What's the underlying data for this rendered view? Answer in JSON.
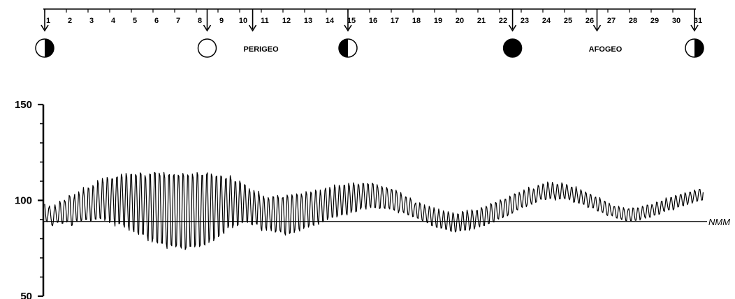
{
  "chart_data": {
    "type": "line",
    "title": "",
    "xlabel": "",
    "ylabel": "",
    "ylim": [
      50,
      150
    ],
    "yticks": [
      "150",
      "100",
      "50"
    ],
    "xlim": [
      1,
      31.4
    ],
    "day_ticks": [
      "1",
      "2",
      "3",
      "4",
      "5",
      "6",
      "7",
      "8",
      "9",
      "10",
      "11",
      "12",
      "13",
      "14",
      "15",
      "16",
      "17",
      "18",
      "19",
      "20",
      "21",
      "22",
      "23",
      "24",
      "25",
      "26",
      "27",
      "28",
      "29",
      "30",
      "31"
    ],
    "reference_line": {
      "label": "NMM",
      "value": 89
    },
    "events": [
      {
        "type": "moon",
        "phase": "first-quarter",
        "day": 1.0
      },
      {
        "type": "moon",
        "phase": "full",
        "day": 8.5
      },
      {
        "type": "label",
        "label": "PERIGEO",
        "day": 10.6
      },
      {
        "type": "moon",
        "phase": "last-quarter",
        "day": 15.0
      },
      {
        "type": "moon",
        "phase": "new",
        "day": 22.6
      },
      {
        "type": "label",
        "label": "AFOGEO",
        "day": 26.5
      },
      {
        "type": "moon",
        "phase": "first-quarter",
        "day": 31.0
      }
    ],
    "series": [
      {
        "period_hours": 12.42,
        "points_per_day": 24,
        "x_start": 1.0,
        "x_end": 31.4,
        "values": [
          98.1,
          93.0,
          89.3,
          88.8,
          91.8,
          95.6,
          97.1,
          94.8,
          90.7,
          87.2,
          86.8,
          89.1,
          95.0,
          97.7,
          95.2,
          90.9,
          88.5,
          88.7,
          93.3,
          99.6,
          98.3,
          92.0,
          88.0,
          88.1,
          95.4,
          100.1,
          99.2,
          94.8,
          88.7,
          89.3,
          95.1,
          102.6,
          101.9,
          93.3,
          86.9,
          87.1,
          94.0,
          100.6,
          103.2,
          96.4,
          89.9,
          88.9,
          97.0,
          104.5,
          102.5,
          93.7,
          89.2,
          89.8,
          100.0,
          106.8,
          102.7,
          96.3,
          89.9,
          90.1,
          96.3,
          106.5,
          106.0,
          98.1,
          89.2,
          89.6,
          98.7,
          107.8,
          106.7,
          96.3,
          90.3,
          90.1,
          99.4,
          110.4,
          108.6,
          99.1,
          90.8,
          90.4,
          101.9,
          111.5,
          109.4,
          99.2,
          89.5,
          90.8,
          101.8,
          112.0,
          110.9,
          99.0,
          88.4,
          89.7,
          102.1,
          111.2,
          111.2,
          100.8,
          90.3,
          86.6,
          101.6,
          111.9,
          112.2,
          100.6,
          87.8,
          88.1,
          103.4,
          113.7,
          112.1,
          100.2,
          87.4,
          86.0,
          102.1,
          114.1,
          112.2,
          97.8,
          86.8,
          84.4,
          101.1,
          113.5,
          113.6,
          98.5,
          85.1,
          83.6,
          100.4,
          113.5,
          112.8,
          100.2,
          83.4,
          82.2,
          99.1,
          114.4,
          113.7,
          98.4,
          82.4,
          82.3,
          98.4,
          113.0,
          111.3,
          97.3,
          82.0,
          78.9,
          96.8,
          113.8,
          113.4,
          95.6,
          78.3,
          80.1,
          98.8,
          114.6,
          114.3,
          93.6,
          78.5,
          77.7,
          98.2,
          114.2,
          112.8,
          95.1,
          77.7,
          77.6,
          97.0,
          114.6,
          111.8,
          93.9,
          77.6,
          74.9,
          96.3,
          113.1,
          113.5,
          93.6,
          76.9,
          76.3,
          96.2,
          112.8,
          113.5,
          93.5,
          75.7,
          76.7,
          97.5,
          113.2,
          112.6,
          92.2,
          76.3,
          75.1,
          96.6,
          114.1,
          112.5,
          94.6,
          74.3,
          75.4,
          96.2,
          113.3,
          112.6,
          93.9,
          76.0,
          76.0,
          96.8,
          113.8,
          111.9,
          93.9,
          75.7,
          77.0,
          96.4,
          114.5,
          113.1,
          94.7,
          75.9,
          76.6,
          95.6,
          113.1,
          113.1,
          93.3,
          77.2,
          76.7,
          97.2,
          113.3,
          114.4,
          96.4,
          78.0,
          80.3,
          96.2,
          113.8,
          112.3,
          97.3,
          78.9,
          80.5,
          98.5,
          112.3,
          112.7,
          96.6,
          81.1,
          81.8,
          99.4,
          112.8,
          112.3,
          97.6,
          83.7,
          82.7,
          99.8,
          111.1,
          111.5,
          98.6,
          85.7,
          86.8,
          100.3,
          112.9,
          110.7,
          99.2,
          85.7,
          87.4,
          100.5,
          109.8,
          109.6,
          99.3,
          86.8,
          87.3,
          100.8,
          110.1,
          108.7,
          98.3,
          88.3,
          89.0,
          99.7,
          108.2,
          107.9,
          98.8,
          89.3,
          88.5,
          99.7,
          106.1,
          104.3,
          96.3,
          87.6,
          87.2,
          97.2,
          105.2,
          102.9,
          95.2,
          88.2,
          87.5,
          96.9,
          104.8,
          101.5,
          95.3,
          85.4,
          84.2,
          94.0,
          102.3,
          100.6,
          92.9,
          86.0,
          84.4,
          94.6,
          101.5,
          100.4,
          92.6,
          86.4,
          84.1,
          94.5,
          102.0,
          101.8,
          92.8,
          83.4,
          84.0,
          93.5,
          102.6,
          101.1,
          92.1,
          84.4,
          83.5,
          94.4,
          101.2,
          101.5,
          92.7,
          83.0,
          81.9,
          94.5,
          102.8,
          101.7,
          92.8,
          82.7,
          83.2,
          93.9,
          103.0,
          101.8,
          93.2,
          83.2,
          84.8,
          94.2,
          103.4,
          102.6,
          94.2,
          85.2,
          84.0,
          95.6,
          103.4,
          101.9,
          95.5,
          85.3,
          86.7,
          95.5,
          104.6,
          103.0,
          94.7,
          86.0,
          87.2,
          96.8,
          104.4,
          103.5,
          95.6,
          87.3,
          86.9,
          97.9,
          105.4,
          104.4,
          96.9,
          89.1,
          87.4,
          97.4,
          105.4,
          102.6,
          97.0,
          88.8,
          89.0,
          98.3,
          105.3,
          106.4,
          99.0,
          89.9,
          91.2,
          98.4,
          106.8,
          104.8,
          98.1,
          91.2,
          91.2,
          99.6,
          108.1,
          106.6,
          98.0,
          91.3,
          92.4,
          101.1,
          107.9,
          106.6,
          100.0,
          92.4,
          92.8,
          100.1,
          107.9,
          107.9,
          100.4,
          93.3,
          92.4,
          100.6,
          108.9,
          107.1,
          101.4,
          93.6,
          95.0,
          102.6,
          109.2,
          107.7,
          101.5,
          94.0,
          94.4,
          102.4,
          108.5,
          107.7,
          102.0,
          95.4,
          96.4,
          102.9,
          108.9,
          108.6,
          102.9,
          96.9,
          95.4,
          102.6,
          108.8,
          108.2,
          101.6,
          97.3,
          96.2,
          103.2,
          109.0,
          108.4,
          102.6,
          96.4,
          96.2,
          102.2,
          108.2,
          106.7,
          102.1,
          95.7,
          96.0,
          102.8,
          107.3,
          106.1,
          100.6,
          96.3,
          95.7,
          101.6,
          106.8,
          105.8,
          101.6,
          96.2,
          95.5,
          101.5,
          105.8,
          105.4,
          99.2,
          95.3,
          94.8,
          99.5,
          105.3,
          103.9,
          99.1,
          93.4,
          94.8,
          98.6,
          104.1,
          102.2,
          98.1,
          94.1,
          93.4,
          98.0,
          101.9,
          101.6,
          96.6,
          92.5,
          92.4,
          96.2,
          101.3,
          100.1,
          96.1,
          91.5,
          91.7,
          95.8,
          98.1,
          98.7,
          94.4,
          90.9,
          90.6,
          94.7,
          98.8,
          97.6,
          93.4,
          89.7,
          89.2,
          93.1,
          97.7,
          95.8,
          92.6,
          88.7,
          88.3,
          92.7,
          96.9,
          95.8,
          91.4,
          87.0,
          86.8,
          92.3,
          96.2,
          94.5,
          89.8,
          86.1,
          85.9,
          91.4,
          95.5,
          93.5,
          89.5,
          85.5,
          85.8,
          90.3,
          94.6,
          93.4,
          88.6,
          84.9,
          84.9,
          90.0,
          94.1,
          92.9,
          88.1,
          84.3,
          83.8,
          89.2,
          93.6,
          92.5,
          87.4,
          83.5,
          84.0,
          88.8,
          93.0,
          92.7,
          88.3,
          84.1,
          84.4,
          89.0,
          94.2,
          93.8,
          88.4,
          84.5,
          84.6,
          90.1,
          95.0,
          93.0,
          89.4,
          84.4,
          85.5,
          90.3,
          95.1,
          94.1,
          90.0,
          85.0,
          86.2,
          90.7,
          94.6,
          94.8,
          89.7,
          87.2,
          86.1,
          91.3,
          96.3,
          95.4,
          91.4,
          87.0,
          86.9,
          91.9,
          97.0,
          96.2,
          92.4,
          87.9,
          88.0,
          93.5,
          98.4,
          97.6,
          93.1,
          89.0,
          88.7,
          94.5,
          98.9,
          98.6,
          93.7,
          90.6,
          90.2,
          94.9,
          100.3,
          99.5,
          95.8,
          90.9,
          91.5,
          96.6,
          100.6,
          100.6,
          96.5,
          91.9,
          92.5,
          96.8,
          102.3,
          101.3,
          97.1,
          93.2,
          94.0,
          98.6,
          103.4,
          103.2,
          98.5,
          95.3,
          95.0,
          99.1,
          104.2,
          103.1,
          100.5,
          96.8,
          96.3,
          101.2,
          105.5,
          104.2,
          99.6,
          96.7,
          97.7,
          101.5,
          106.9,
          105.5,
          101.5,
          98.5,
          97.9,
          102.5,
          106.0,
          105.5,
          102.3,
          98.9,
          99.6,
          103.8,
          107.9,
          107.2,
          103.8,
          100.7,
          100.6,
          104.3,
          108.6,
          108.1,
          104.3,
          100.4,
          100.6,
          104.5,
          109.6,
          108.5,
          105.0,
          100.9,
          101.3,
          105.0,
          109.4,
          108.3,
          103.8,
          101.3,
          100.1,
          104.5,
          108.4,
          107.9,
          104.6,
          100.8,
          100.8,
          104.9,
          109.2,
          108.1,
          103.8,
          101.4,
          100.8,
          105.1,
          108.3,
          107.5,
          103.7,
          101.0,
          100.3,
          103.5,
          106.9,
          106.8,
          103.0,
          99.0,
          99.2,
          102.5,
          107.2,
          105.0,
          102.2,
          98.8,
          98.5,
          102.2,
          105.6,
          104.5,
          101.4,
          98.2,
          97.9,
          101.2,
          104.4,
          103.6,
          100.3,
          96.3,
          96.6,
          99.8,
          103.2,
          102.8,
          99.4,
          96.2,
          96.1,
          98.9,
          101.3,
          101.8,
          98.2,
          94.6,
          94.4,
          97.5,
          101.5,
          99.9,
          96.4,
          94.0,
          93.6,
          96.6,
          99.6,
          99.2,
          96.0,
          92.4,
          92.1,
          95.3,
          98.6,
          97.3,
          94.4,
          92.4,
          91.9,
          94.9,
          96.8,
          96.7,
          94.1,
          91.0,
          90.7,
          93.7,
          97.0,
          95.8,
          92.9,
          90.5,
          89.9,
          92.6,
          96.3,
          95.2,
          92.4,
          89.4,
          89.3,
          93.4,
          95.4,
          95.6,
          92.5,
          89.5,
          89.4,
          92.3,
          96.1,
          95.7,
          92.0,
          89.6,
          89.6,
          93.1,
          96.1,
          95.9,
          93.3,
          89.7,
          90.7,
          93.7,
          96.9,
          96.4,
          93.7,
          91.4,
          90.7,
          93.7,
          97.6,
          97.4,
          94.4,
          91.3,
          91.2,
          95.2,
          97.9,
          97.1,
          95.3,
          92.3,
          92.4,
          95.8,
          99.1,
          98.8,
          96.1,
          92.7,
          93.1,
          96.0,
          99.4,
          99.6,
          96.8,
          94.6,
          94.2,
          97.8,
          101.3,
          100.0,
          97.0,
          95.1,
          95.1,
          98.5,
          101.5,
          101.4,
          98.2,
          95.0,
          95.6,
          99.5,
          102.6,
          102.1,
          99.0,
          96.5,
          96.9,
          99.8,
          102.9,
          103.1,
          100.9,
          97.6,
          97.1,
          100.6,
          104.0,
          103.3,
          100.3,
          97.8,
          98.7,
          101.9,
          104.3,
          104.2,
          101.9,
          98.5,
          99.5,
          101.9,
          105.4,
          104.6,
          102.0,
          99.5,
          99.8,
          103.3,
          105.8,
          105.8,
          102.9,
          100.1,
          100.2,
          104.2
        ]
      }
    ]
  }
}
